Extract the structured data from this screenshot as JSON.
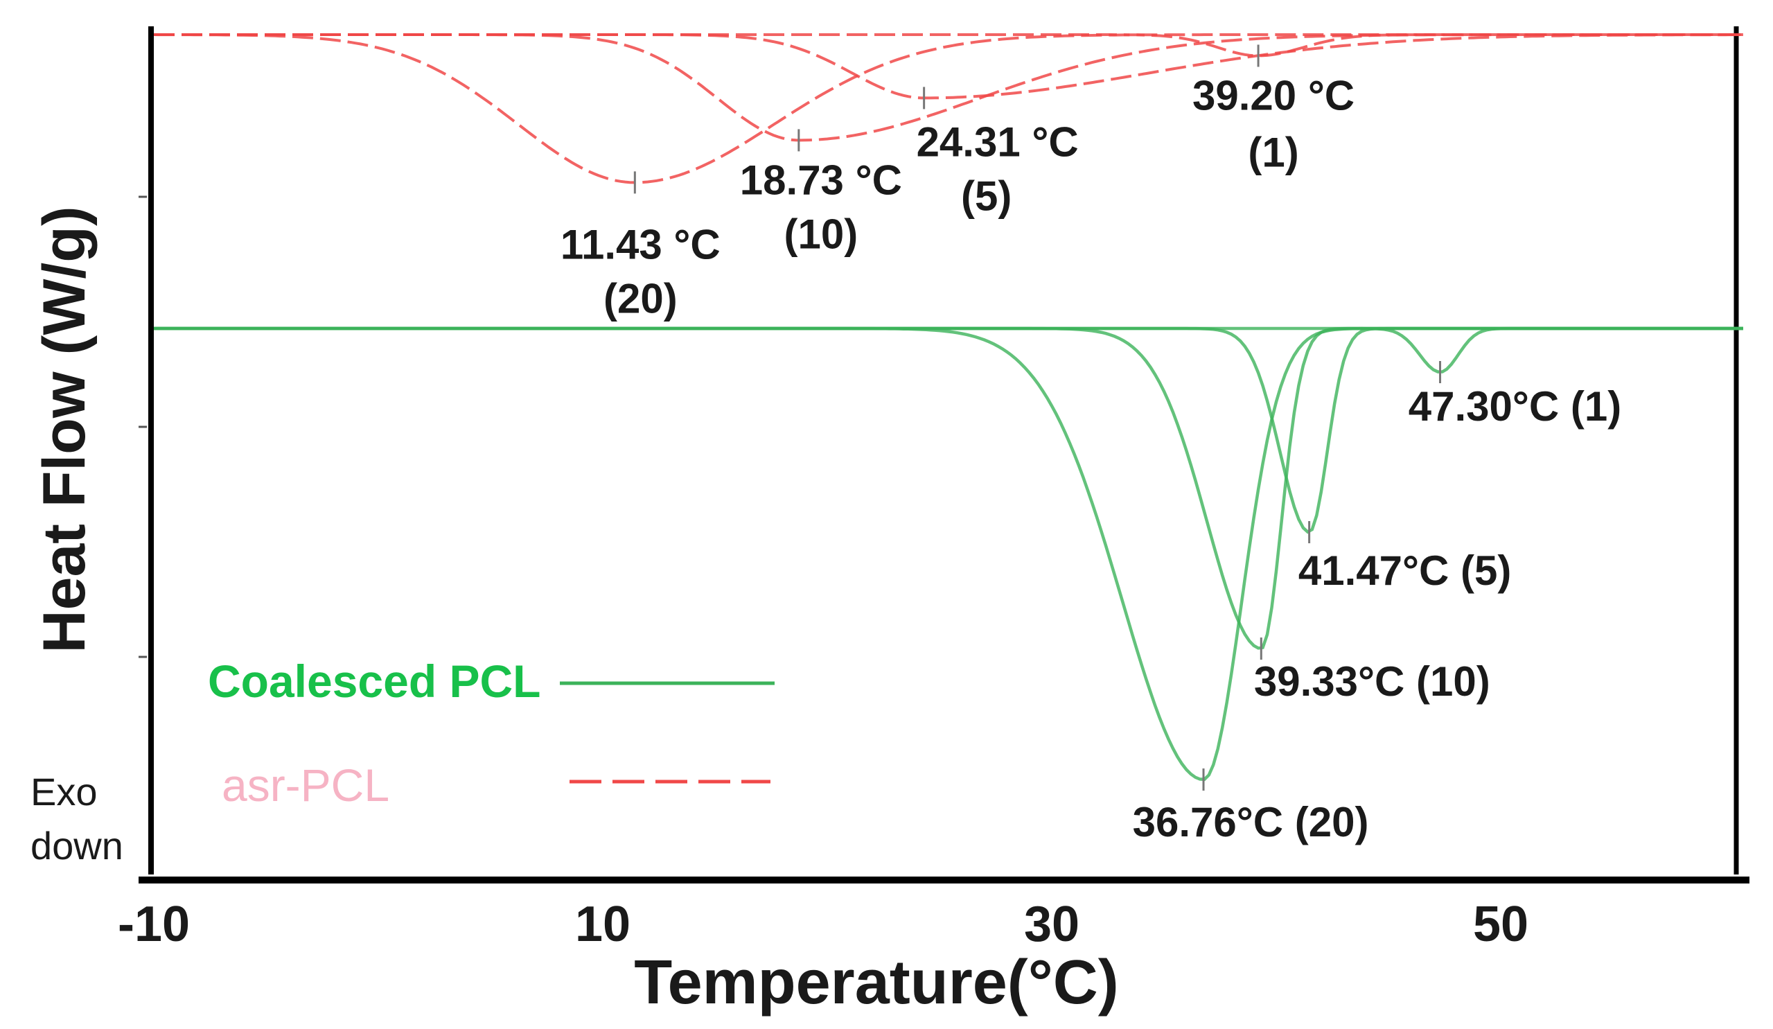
{
  "chart_data": {
    "type": "line",
    "xlabel": "Temperature(°C)",
    "ylabel": "Heat Flow (W/g)",
    "xlim": [
      -10,
      61
    ],
    "xticks": [
      -10,
      10,
      30,
      50
    ],
    "xtick_labels": [
      "-10",
      "10",
      "30",
      "50"
    ],
    "exo_note": [
      "Exo",
      "down"
    ],
    "legend": [
      {
        "name": "Coalesced PCL",
        "color": "#18c04a",
        "style": "solid"
      },
      {
        "name": "asr-PCL",
        "color": "#f6b3c4",
        "style": "dashed"
      }
    ],
    "groups": [
      {
        "name": "asr-PCL",
        "color": "#f04848",
        "style": "dashed",
        "series": [
          {
            "name": "asr-PCL (20)",
            "peak_temp": 11.43,
            "peak_depth": 0.21,
            "width_left": 5.2,
            "width_right": 6.2,
            "label": [
              "11.43 °C",
              "(20)"
            ]
          },
          {
            "name": "asr-PCL (10)",
            "peak_temp": 18.73,
            "peak_depth": 0.15,
            "width_left": 3.6,
            "width_right": 8.0,
            "label": [
              "18.73 °C",
              "(10)"
            ]
          },
          {
            "name": "asr-PCL (5)",
            "peak_temp": 24.31,
            "peak_depth": 0.09,
            "width_left": 3.2,
            "width_right": 10.0,
            "label": [
              "24.31 °C",
              "(5)"
            ]
          },
          {
            "name": "asr-PCL (1)",
            "peak_temp": 39.2,
            "peak_depth": 0.03,
            "width_left": 1.8,
            "width_right": 2.0,
            "label": [
              "39.20 °C",
              "(1)"
            ]
          }
        ]
      },
      {
        "name": "Coalesced PCL",
        "color": "#3cb35a",
        "style": "solid",
        "series": [
          {
            "name": "Coalesced PCL (20)",
            "peak_temp": 36.76,
            "peak_depth": 0.62,
            "width_left": 3.6,
            "width_right": 1.7,
            "label": [
              "36.76°C (20)"
            ]
          },
          {
            "name": "Coalesced PCL (10)",
            "peak_temp": 39.33,
            "peak_depth": 0.44,
            "width_left": 2.4,
            "width_right": 0.9,
            "label": [
              "39.33°C (10)"
            ]
          },
          {
            "name": "Coalesced PCL (5)",
            "peak_temp": 41.47,
            "peak_depth": 0.28,
            "width_left": 1.3,
            "width_right": 0.8,
            "label": [
              "41.47°C (5)"
            ]
          },
          {
            "name": "Coalesced PCL (1)",
            "peak_temp": 47.3,
            "peak_depth": 0.06,
            "width_left": 0.9,
            "width_right": 0.8,
            "label": [
              "47.30°C (1)"
            ]
          }
        ]
      }
    ]
  }
}
